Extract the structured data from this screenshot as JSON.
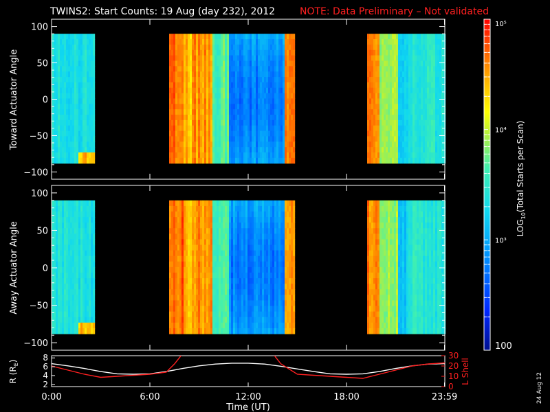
{
  "header": {
    "title": "TWINS2: Start Counts: 19 Aug (day 232), 2012",
    "note": "NOTE: Data Preliminary – Not validated",
    "note_color": "#ff2020"
  },
  "side_date": "24 Aug 12",
  "chart_data": [
    {
      "type": "heatmap",
      "name": "Toward Actuator Angle panel",
      "ylabel": "Toward Actuator Angle",
      "ylim": [
        -110,
        110
      ],
      "yticks": [
        100,
        50,
        0,
        -50,
        -100
      ],
      "xlim": [
        0,
        24
      ],
      "data_extent_y": [
        -88,
        90
      ],
      "coverage_hours": [
        [
          0,
          2.6
        ],
        [
          7.2,
          14.8
        ],
        [
          19.2,
          24
        ]
      ]
    },
    {
      "type": "heatmap",
      "name": "Away Actuator Angle panel",
      "ylabel": "Away Actuator Angle",
      "ylim": [
        -110,
        110
      ],
      "yticks": [
        100,
        50,
        0,
        -50,
        -100
      ],
      "xlim": [
        0,
        24
      ],
      "data_extent_y": [
        -88,
        90
      ],
      "coverage_hours": [
        [
          0,
          2.6
        ],
        [
          7.2,
          14.8
        ],
        [
          19.2,
          24
        ]
      ]
    },
    {
      "type": "line",
      "name": "orbit panel",
      "xlabel": "Time (UT)",
      "xticks": [
        "0:00",
        "6:00",
        "12:00",
        "18:00",
        "23:59"
      ],
      "xtick_hours": [
        0,
        6,
        12,
        18,
        23.98
      ],
      "left_axis": {
        "label_main": "R (R",
        "label_sub": "E",
        "label_tail": ")",
        "ylim": [
          1.5,
          8.5
        ],
        "yticks": [
          2,
          4,
          6,
          8
        ],
        "color": "#ffffff"
      },
      "right_axis": {
        "label": "L Shell",
        "ylim": [
          0,
          30
        ],
        "yticks": [
          0,
          10,
          20,
          30
        ],
        "color": "#ff2020"
      },
      "series": [
        {
          "name": "R (RE)",
          "axis": "left",
          "color": "#ffffff",
          "x": [
            0,
            1,
            2,
            3,
            4,
            5,
            6,
            7,
            8,
            9,
            10,
            11,
            12,
            13,
            14,
            15,
            16,
            17,
            18,
            19,
            20,
            21,
            22,
            23,
            24
          ],
          "y": [
            6.7,
            6.2,
            5.6,
            4.9,
            4.4,
            4.3,
            4.4,
            4.9,
            5.6,
            6.2,
            6.6,
            6.8,
            6.8,
            6.6,
            6.1,
            5.5,
            4.9,
            4.4,
            4.3,
            4.4,
            4.9,
            5.6,
            6.2,
            6.6,
            6.7
          ]
        },
        {
          "name": "L Shell",
          "axis": "right",
          "color": "#ff2020",
          "x": [
            0,
            1,
            2,
            3,
            4,
            5,
            6,
            7,
            7.5,
            8,
            13.5,
            14,
            15,
            16,
            17,
            18,
            19,
            20,
            21,
            22,
            23,
            24
          ],
          "y": [
            20,
            16,
            12,
            9,
            10,
            11,
            12,
            14,
            22,
            32,
            32,
            22,
            12,
            11,
            10,
            9,
            8,
            12,
            16,
            20,
            22,
            23
          ]
        }
      ]
    },
    {
      "type": "heatmap",
      "name": "colorbar",
      "label": "LOG10(Total Starts per Scan)",
      "label_main": "LOG",
      "label_sub": "10",
      "label_tail": "(Total Starts per Scan)",
      "scale": "log",
      "range": [
        100,
        100000
      ],
      "tick_labels": [
        "10⁵",
        "10⁴",
        "10³",
        "100"
      ],
      "tick_values": [
        100000,
        10000,
        1000,
        100
      ]
    }
  ]
}
